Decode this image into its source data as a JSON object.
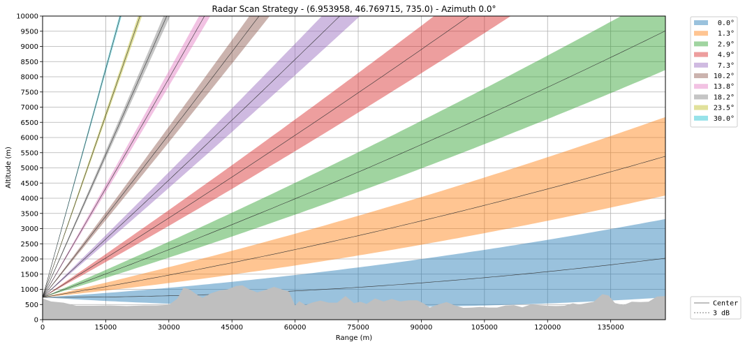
{
  "chart_data": {
    "type": "area",
    "title": "Radar Scan Strategy - (6.953958, 46.769715, 735.0) - Azimuth 0.0°",
    "xlabel": "Range (m)",
    "ylabel": "Altitude (m)",
    "xlim": [
      0,
      148000
    ],
    "ylim": [
      0,
      10000
    ],
    "grid": true,
    "xticks": [
      "0",
      "15000",
      "30000",
      "45000",
      "60000",
      "75000",
      "90000",
      "105000",
      "120000",
      "135000"
    ],
    "yticks": [
      "0",
      "500",
      "1000",
      "1500",
      "2000",
      "2500",
      "3000",
      "3500",
      "4000",
      "4500",
      "5000",
      "5500",
      "6000",
      "6500",
      "7000",
      "7500",
      "8000",
      "8500",
      "9000",
      "9500",
      "10000"
    ],
    "radar_altitude": 735.0,
    "beamwidth_deg": 1.0,
    "legend_position": "upper right, outside plot",
    "series": [
      {
        "name": "0.0°",
        "elevation": 0.0,
        "color": "#1f77b4"
      },
      {
        "name": "1.3°",
        "elevation": 1.3,
        "color": "#ff7f0e"
      },
      {
        "name": "2.9°",
        "elevation": 2.9,
        "color": "#2ca02c"
      },
      {
        "name": "4.9°",
        "elevation": 4.9,
        "color": "#d62728"
      },
      {
        "name": "7.3°",
        "elevation": 7.3,
        "color": "#9467bd"
      },
      {
        "name": "10.2°",
        "elevation": 10.2,
        "color": "#8c564b"
      },
      {
        "name": "13.8°",
        "elevation": 13.8,
        "color": "#e377c2"
      },
      {
        "name": "18.2°",
        "elevation": 18.2,
        "color": "#7f7f7f"
      },
      {
        "name": "23.5°",
        "elevation": 23.5,
        "color": "#bcbd22"
      },
      {
        "name": "30.0°",
        "elevation": 30.0,
        "color": "#17becf"
      }
    ],
    "line_legend": [
      {
        "name": "Center",
        "style": "solid"
      },
      {
        "name": "3 dB",
        "style": "dashed"
      }
    ],
    "terrain": {
      "color": "#bfbfbf",
      "x": [
        0,
        2000,
        5000,
        8000,
        12000,
        16000,
        20000,
        24000,
        27000,
        30000,
        32000,
        33500,
        35000,
        36500,
        38000,
        40000,
        42000,
        44000,
        46000,
        47500,
        49000,
        51000,
        53000,
        55000,
        57000,
        58500,
        60000,
        61000,
        62500,
        64000,
        66000,
        68000,
        70000,
        72000,
        74000,
        75500,
        77000,
        79000,
        81000,
        83000,
        85000,
        87000,
        89000,
        90500,
        92000,
        94000,
        96000,
        98000,
        100000,
        102000,
        104000,
        106000,
        108000,
        110000,
        112000,
        114000,
        116000,
        118000,
        120000,
        122000,
        124000,
        126000,
        127500,
        129000,
        131000,
        133000,
        134500,
        136000,
        138000,
        140000,
        142000,
        144000,
        146000,
        148000
      ],
      "y": [
        700,
        600,
        560,
        460,
        460,
        470,
        450,
        470,
        470,
        490,
        690,
        1060,
        990,
        840,
        720,
        870,
        960,
        1000,
        1110,
        1130,
        1010,
        900,
        980,
        1080,
        990,
        930,
        470,
        610,
        480,
        560,
        630,
        560,
        560,
        780,
        540,
        590,
        520,
        700,
        600,
        680,
        600,
        640,
        640,
        540,
        400,
        500,
        580,
        470,
        390,
        400,
        420,
        400,
        400,
        470,
        480,
        410,
        500,
        480,
        460,
        450,
        460,
        540,
        500,
        540,
        590,
        840,
        800,
        550,
        480,
        590,
        580,
        590,
        760,
        780
      ]
    }
  }
}
